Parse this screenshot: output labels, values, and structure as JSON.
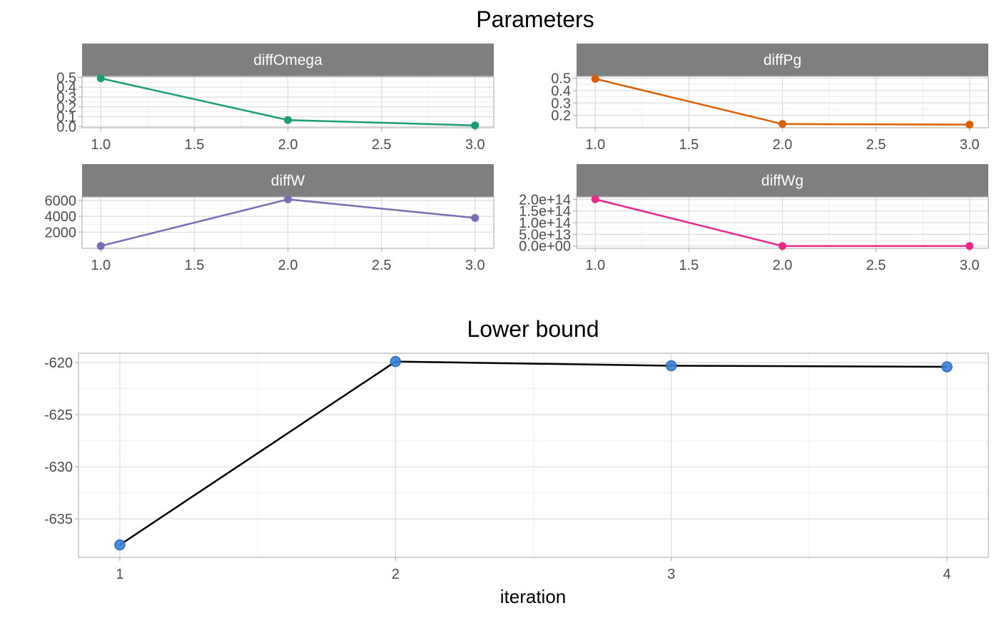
{
  "chart_data": [
    {
      "type": "line",
      "title": "Parameters",
      "facets": [
        {
          "name": "diffOmega",
          "color": "#1b9e77",
          "x": [
            1.0,
            2.0,
            3.0
          ],
          "y": [
            0.49,
            0.066,
            0.012
          ],
          "xlim": [
            0.9,
            3.1
          ],
          "ylim": [
            -0.012,
            0.51
          ],
          "xticks": [
            1.0,
            1.5,
            2.0,
            2.5,
            3.0
          ],
          "xtick_labels": [
            "1.0",
            "1.5",
            "2.0",
            "2.5",
            "3.0"
          ],
          "yticks": [
            0.0,
            0.1,
            0.2,
            0.3,
            0.4,
            0.5
          ],
          "ytick_labels": [
            "0.0",
            "0.1",
            "0.2",
            "0.3",
            "0.4",
            "0.5"
          ]
        },
        {
          "name": "diffPg",
          "color": "#d95f02",
          "x": [
            1.0,
            2.0,
            3.0
          ],
          "y": [
            0.495,
            0.13,
            0.125
          ],
          "xlim": [
            0.9,
            3.1
          ],
          "ylim": [
            0.1,
            0.515
          ],
          "xticks": [
            1.0,
            1.5,
            2.0,
            2.5,
            3.0
          ],
          "xtick_labels": [
            "1.0",
            "1.5",
            "2.0",
            "2.5",
            "3.0"
          ],
          "yticks": [
            0.2,
            0.3,
            0.4,
            0.5
          ],
          "ytick_labels": [
            "0.2",
            "0.3",
            "0.4",
            "0.5"
          ]
        },
        {
          "name": "diffW",
          "color": "#7570b3",
          "x": [
            1.0,
            2.0,
            3.0
          ],
          "y": [
            250,
            6150,
            3800
          ],
          "xlim": [
            0.9,
            3.1
          ],
          "ylim": [
            -50,
            6450
          ],
          "xticks": [
            1.0,
            1.5,
            2.0,
            2.5,
            3.0
          ],
          "xtick_labels": [
            "1.0",
            "1.5",
            "2.0",
            "2.5",
            "3.0"
          ],
          "yticks": [
            2000,
            4000,
            6000
          ],
          "ytick_labels": [
            "2000",
            "4000",
            "6000"
          ]
        },
        {
          "name": "diffWg",
          "color": "#e7298a",
          "x": [
            1.0,
            2.0,
            3.0
          ],
          "y": [
            200000000000000.0,
            0,
            0
          ],
          "xlim": [
            0.9,
            3.1
          ],
          "ylim": [
            -10000000000000.0,
            210000000000000.0
          ],
          "xticks": [
            1.0,
            1.5,
            2.0,
            2.5,
            3.0
          ],
          "xtick_labels": [
            "1.0",
            "1.5",
            "2.0",
            "2.5",
            "3.0"
          ],
          "yticks": [
            0,
            50000000000000.0,
            100000000000000.0,
            150000000000000.0,
            200000000000000.0
          ],
          "ytick_labels": [
            "0.0e+00",
            "5.0e+13",
            "1.0e+14",
            "1.5e+14",
            "2.0e+14"
          ]
        }
      ],
      "grid": true
    },
    {
      "type": "line",
      "title": "Lower bound",
      "xlabel": "iteration",
      "ylabel": "",
      "x": [
        1,
        2,
        3,
        4
      ],
      "y": [
        -637.5,
        -619.9,
        -620.3,
        -620.4
      ],
      "xlim": [
        0.85,
        4.15
      ],
      "ylim": [
        -638.7,
        -619.1
      ],
      "xticks": [
        1,
        2,
        3,
        4
      ],
      "xtick_labels": [
        "1",
        "2",
        "3",
        "4"
      ],
      "yticks": [
        -635,
        -630,
        -625,
        -620
      ],
      "ytick_labels": [
        "-635",
        "-630",
        "-625",
        "-620"
      ],
      "line_color": "#000000",
      "point_color": "#3a7fd5",
      "grid": true
    }
  ]
}
